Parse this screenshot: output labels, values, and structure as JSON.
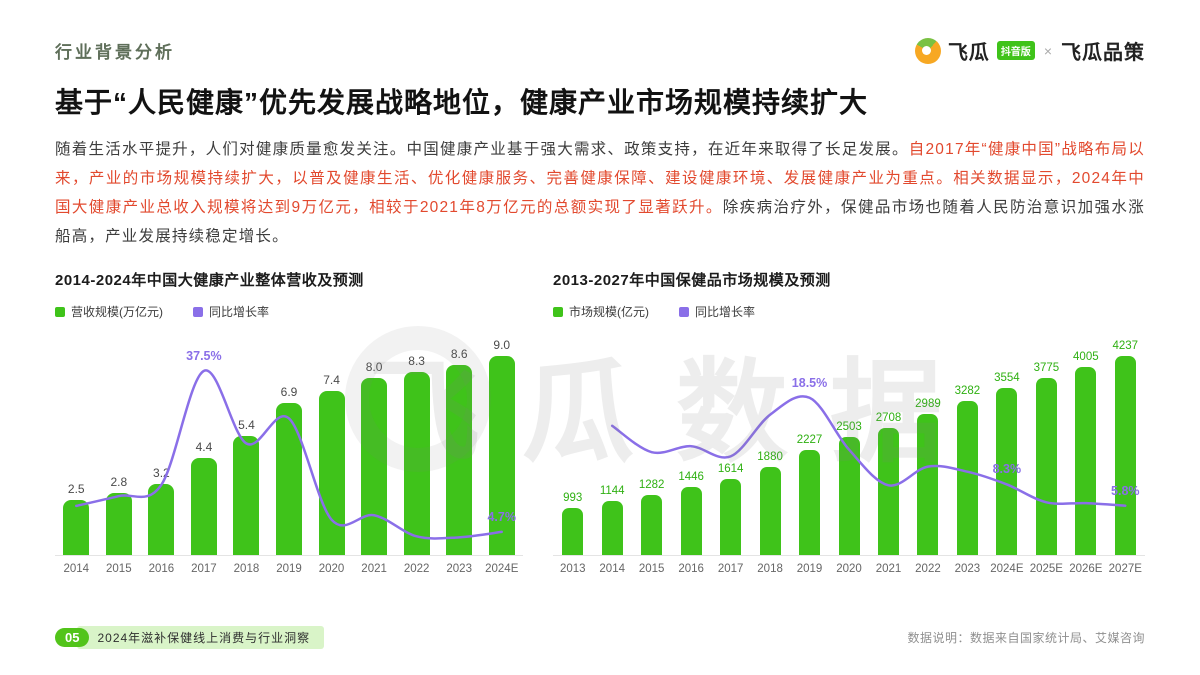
{
  "header": {
    "section_label": "行业背景分析",
    "brand": {
      "feigua": "飞瓜",
      "badge": "抖音版",
      "separator": "×",
      "partner": "飞瓜品策"
    }
  },
  "title": "基于“人民健康”优先发展战略地位，健康产业市场规模持续扩大",
  "paragraph": {
    "segments": [
      {
        "color": "dark",
        "text": "随着生活水平提升，人们对健康质量愈发关注。中国健康产业基于强大需求、政策支持，在近年来取得了长足发展。"
      },
      {
        "color": "red",
        "text": "自2017年“健康中国”战略布局以来，产业的市场规模持续扩大，以普及健康生活、优化健康服务、完善健康保障、建设健康环境、发展健康产业为重点。相关数据显示，2024年中国大健康产业总收入规模将达到9万亿元，相较于2021年8万亿元的总额实现了显著跃升。"
      },
      {
        "color": "dark",
        "text": "除疾病治疗外，保健品市场也随着人民防治意识加强水涨船高，产业发展持续稳定增长。"
      }
    ]
  },
  "chart_data": [
    {
      "type": "bar+line",
      "title": "2014-2024年中国大健康产业整体营收及预测",
      "legend": [
        "营收规模(万亿元)",
        "同比增长率"
      ],
      "categories": [
        "2014",
        "2015",
        "2016",
        "2017",
        "2018",
        "2019",
        "2020",
        "2021",
        "2022",
        "2023",
        "2024E"
      ],
      "bar_series": {
        "name": "营收规模(万亿元)",
        "values": [
          2.5,
          2.8,
          3.2,
          4.4,
          5.4,
          6.9,
          7.4,
          8.0,
          8.3,
          8.6,
          9.0
        ],
        "labels": [
          "2.5",
          "2.8",
          "3.2",
          "4.4",
          "5.4",
          "6.9",
          "7.4",
          "8.0",
          "8.3",
          "8.6",
          "9.0"
        ]
      },
      "line_series": {
        "name": "同比增长率",
        "values_pct": [
          10.0,
          12.0,
          14.3,
          37.5,
          22.7,
          27.8,
          7.2,
          8.1,
          3.8,
          3.6,
          4.7
        ]
      },
      "line_labels": [
        {
          "index": 3,
          "text": "37.5%"
        },
        {
          "index": 10,
          "text": "4.7%"
        }
      ],
      "ylim": [
        0,
        10
      ],
      "line_ylim": [
        0,
        45
      ],
      "value_color": "#4a4a4a",
      "grid": false,
      "legend_position": "top-left"
    },
    {
      "type": "bar+line",
      "title": "2013-2027年中国保健品市场规模及预测",
      "legend": [
        "市场规模(亿元)",
        "同比增长率"
      ],
      "categories": [
        "2013",
        "2014",
        "2015",
        "2016",
        "2017",
        "2018",
        "2019",
        "2020",
        "2021",
        "2022",
        "2023",
        "2024E",
        "2025E",
        "2026E",
        "2027E"
      ],
      "bar_series": {
        "name": "市场规模(亿元)",
        "values": [
          993,
          1144,
          1282,
          1446,
          1614,
          1880,
          2227,
          2503,
          2708,
          2989,
          3282,
          3554,
          3775,
          4005,
          4237
        ]
      },
      "line_series": {
        "name": "同比增长率",
        "values_pct": [
          null,
          15.2,
          12.1,
          12.8,
          11.6,
          16.5,
          18.5,
          12.4,
          8.2,
          10.4,
          9.8,
          8.3,
          6.2,
          6.1,
          5.8
        ]
      },
      "line_labels": [
        {
          "index": 6,
          "text": "18.5%"
        },
        {
          "index": 11,
          "text": "8.3%"
        },
        {
          "index": 14,
          "text": "5.8%"
        }
      ],
      "ylim": [
        0,
        4700
      ],
      "line_ylim": [
        0,
        26
      ],
      "value_color": "#2fb012",
      "grid": false,
      "legend_position": "top-left"
    }
  ],
  "watermark": {
    "text": "飞瓜数据"
  },
  "footer": {
    "page_number": "05",
    "caption": "2024年滋补保健线上消费与行业洞察",
    "data_note": "数据说明：数据来自国家统计局、艾媒咨询"
  },
  "colors": {
    "bar_green": "#3fc31a",
    "line_purple": "#8a6fe8",
    "red_text": "#e2492e",
    "dark_text": "#3d3d3d",
    "title_text": "#121212",
    "section_label": "#5f6f5a",
    "footer_green": "#52c41a",
    "footer_highlight": "#d9f4c8",
    "logo_orange": "#f7a823",
    "logo_green": "#7ac143"
  }
}
